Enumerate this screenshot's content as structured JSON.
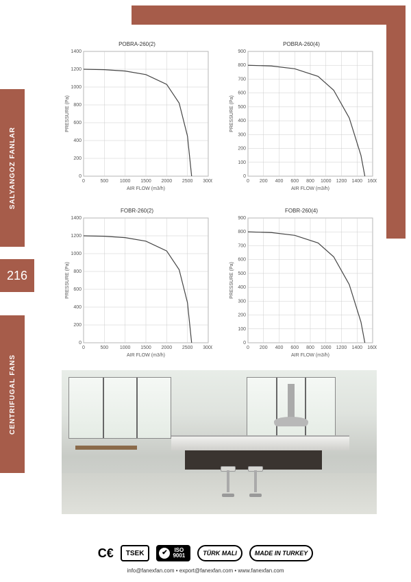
{
  "accent_color": "#a65c4a",
  "page_number": "216",
  "sidebar": {
    "top_label": "SALYANGOZ FANLAR",
    "bottom_label": "CENTRIFUGAL FANS"
  },
  "charts": [
    {
      "title": "POBRA-260(2)",
      "xlabel": "AIR FLOW (m3/h)",
      "ylabel": "PRESSURE (Pa)",
      "xlim": [
        0,
        3000
      ],
      "xtick_step": 500,
      "ylim": [
        0,
        1400
      ],
      "ytick_step": 200,
      "curve": [
        [
          0,
          1200
        ],
        [
          500,
          1195
        ],
        [
          1000,
          1180
        ],
        [
          1500,
          1140
        ],
        [
          2000,
          1030
        ],
        [
          2300,
          820
        ],
        [
          2500,
          450
        ],
        [
          2600,
          0
        ]
      ],
      "line_color": "#444444",
      "grid_color": "#cccccc",
      "background_color": "#ffffff"
    },
    {
      "title": "POBRA-260(4)",
      "xlabel": "AIR FLOW (m3/h)",
      "ylabel": "PRESSURE (Pa)",
      "xlim": [
        0,
        1600
      ],
      "xtick_step": 200,
      "ylim": [
        0,
        900
      ],
      "ytick_step": 100,
      "curve": [
        [
          0,
          800
        ],
        [
          300,
          795
        ],
        [
          600,
          775
        ],
        [
          900,
          720
        ],
        [
          1100,
          620
        ],
        [
          1300,
          420
        ],
        [
          1450,
          150
        ],
        [
          1500,
          0
        ]
      ],
      "line_color": "#444444",
      "grid_color": "#cccccc",
      "background_color": "#ffffff"
    },
    {
      "title": "FOBR-260(2)",
      "xlabel": "AIR FLOW (m3/h)",
      "ylabel": "PRESSURE (Pa)",
      "xlim": [
        0,
        3000
      ],
      "xtick_step": 500,
      "ylim": [
        0,
        1400
      ],
      "ytick_step": 200,
      "curve": [
        [
          0,
          1200
        ],
        [
          500,
          1195
        ],
        [
          1000,
          1180
        ],
        [
          1500,
          1140
        ],
        [
          2000,
          1030
        ],
        [
          2300,
          820
        ],
        [
          2500,
          450
        ],
        [
          2600,
          0
        ]
      ],
      "line_color": "#444444",
      "grid_color": "#cccccc",
      "background_color": "#ffffff"
    },
    {
      "title": "FOBR-260(4)",
      "xlabel": "AIR FLOW (m3/h)",
      "ylabel": "PRESSURE (Pa)",
      "xlim": [
        0,
        1600
      ],
      "xtick_step": 200,
      "ylim": [
        0,
        900
      ],
      "ytick_step": 100,
      "curve": [
        [
          0,
          800
        ],
        [
          300,
          795
        ],
        [
          600,
          775
        ],
        [
          900,
          720
        ],
        [
          1100,
          620
        ],
        [
          1300,
          420
        ],
        [
          1450,
          150
        ],
        [
          1500,
          0
        ]
      ],
      "line_color": "#444444",
      "grid_color": "#cccccc",
      "background_color": "#ffffff"
    }
  ],
  "certifications": {
    "ce": "C€",
    "tsek": "TSEK",
    "iso_top": "ISO",
    "iso_bottom": "9001",
    "turkmali": "TÜRK MALI",
    "madein": "MADE IN TURKEY"
  },
  "contact": "info@fanexfan.com • export@fanexfan.com • www.fanexfan.com"
}
